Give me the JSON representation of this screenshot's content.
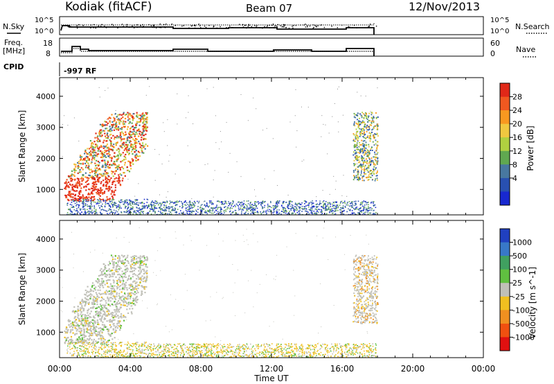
{
  "header": {
    "station": "Kodiak (fitACF)",
    "beam": "Beam 07",
    "date": "12/Nov/2013"
  },
  "side_labels": {
    "nsky": "N.Sky",
    "freq_top": "Freq.",
    "freq_unit": "[MHz]",
    "cpid": "CPID",
    "nsearch": "N.Search",
    "nave": "Nave",
    "cpid_value": "-997 RF"
  },
  "tick_labels": {
    "nsky_left": [
      "10^5",
      "10^0"
    ],
    "nsky_right": [
      "10^5",
      "10^0"
    ],
    "freq_left": [
      "18",
      "8"
    ],
    "freq_right": [
      "60",
      "0"
    ]
  },
  "chart_data": [
    {
      "type": "heatmap",
      "name": "power-panel",
      "xlabel": "",
      "ylabel": "Slant Range [km]",
      "ylim": [
        180,
        4600
      ],
      "xlim": [
        0,
        24
      ],
      "yticks": [
        "1000",
        "2000",
        "3000",
        "4000"
      ],
      "colorbar": {
        "label": "Power [dB]",
        "ticks": [
          "28",
          "24",
          "20",
          "16",
          "12",
          "8",
          "4"
        ],
        "colors": [
          "#e02818",
          "#f05820",
          "#f89820",
          "#f0c840",
          "#b0d040",
          "#60a850",
          "#4878a0",
          "#2850b0",
          "#1828d0"
        ]
      },
      "regions": [
        {
          "t0": 0.3,
          "t1": 5.0,
          "r0": 700,
          "r1": 3500,
          "value": "18-30 dB"
        },
        {
          "t0": 5.0,
          "t1": 18.0,
          "r0": 200,
          "r1": 700,
          "value": "4-12 dB"
        },
        {
          "t0": 16.6,
          "t1": 18.0,
          "r0": 1300,
          "r1": 3500,
          "value": "4-20 dB"
        }
      ]
    },
    {
      "type": "heatmap",
      "name": "velocity-panel",
      "xlabel": "Time UT",
      "ylabel": "Slant Range [km]",
      "ylim": [
        180,
        4600
      ],
      "xlim": [
        0,
        24
      ],
      "xticks": [
        "00:00",
        "04:00",
        "08:00",
        "12:00",
        "16:00",
        "20:00",
        "00:00"
      ],
      "yticks": [
        "1000",
        "2000",
        "3000",
        "4000"
      ],
      "colorbar": {
        "label": "Velocity [m s^-1]",
        "ticks": [
          "1000",
          "500",
          "100",
          "25",
          "-25",
          "-100",
          "-500",
          "-1000"
        ],
        "colors": [
          "#2040c0",
          "#3878c8",
          "#40a060",
          "#60c040",
          "#c0c0b8",
          "#f0c020",
          "#f09020",
          "#f05010",
          "#e01010"
        ]
      },
      "regions": [
        {
          "t0": 0.3,
          "t1": 5.0,
          "r0": 700,
          "r1": 3500,
          "value": "ground scatter (grey)"
        },
        {
          "t0": 5.0,
          "t1": 18.0,
          "r0": 200,
          "r1": 700,
          "value": "-25 to -100 m/s"
        },
        {
          "t0": 16.6,
          "t1": 18.0,
          "r0": 1300,
          "r1": 3500,
          "value": "ground scatter, -100 to -500 m/s"
        }
      ]
    }
  ]
}
